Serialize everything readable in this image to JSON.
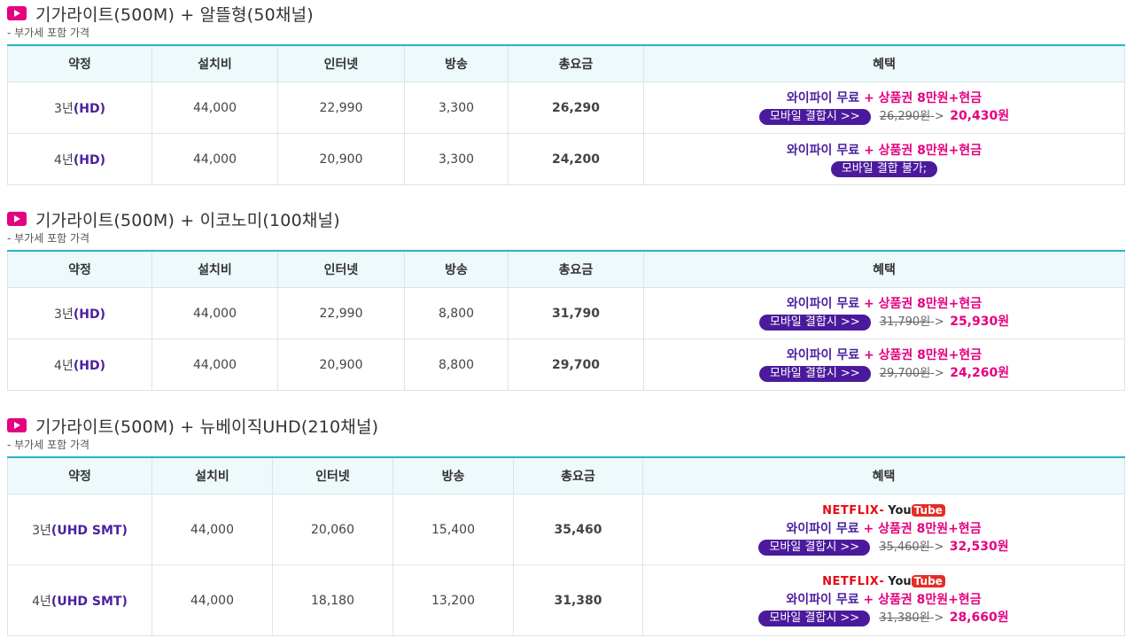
{
  "columns": [
    "약정",
    "설치비",
    "인터넷",
    "방송",
    "총요금",
    "혜택"
  ],
  "note": "- 부가세 포함 가격",
  "benefit": {
    "wifi": "와이파이 무료",
    "plus": " + ",
    "gift": "상품권 8만원+현금",
    "mobile_pill": "모바일 결합시 >>",
    "mobile_unavailable": "모바일 결합 불가;",
    "arrow": "->",
    "netflix": "NETFLIX",
    "dash": "-",
    "yt_you": "You",
    "yt_tube": "Tube"
  },
  "sections": [
    {
      "title": "기가라이트(500M) + 알뜰형(50채널)",
      "rows": [
        {
          "term_num": "3년",
          "term_type": "(HD)",
          "install": "44,000",
          "internet": "22,990",
          "tv": "3,300",
          "total": "26,290",
          "old_price": "26,290원",
          "new_price": "20,430원",
          "mobile": true
        },
        {
          "term_num": "4년",
          "term_type": "(HD)",
          "install": "44,000",
          "internet": "20,900",
          "tv": "3,300",
          "total": "24,200",
          "mobile": false
        }
      ]
    },
    {
      "title": "기가라이트(500M) + 이코노미(100채널)",
      "rows": [
        {
          "term_num": "3년",
          "term_type": "(HD)",
          "install": "44,000",
          "internet": "22,990",
          "tv": "8,800",
          "total": "31,790",
          "old_price": "31,790원",
          "new_price": "25,930원",
          "mobile": true
        },
        {
          "term_num": "4년",
          "term_type": "(HD)",
          "install": "44,000",
          "internet": "20,900",
          "tv": "8,800",
          "total": "29,700",
          "old_price": "29,700원",
          "new_price": "24,260원",
          "mobile": true
        }
      ]
    },
    {
      "title": "기가라이트(500M) + 뉴베이직UHD(210채널)",
      "rows": [
        {
          "term_num": "3년",
          "term_type": "(UHD SMT)",
          "install": "44,000",
          "internet": "20,060",
          "tv": "15,400",
          "total": "35,460",
          "old_price": "35,460원",
          "new_price": "32,530원",
          "mobile": true,
          "logos": true
        },
        {
          "term_num": "4년",
          "term_type": "(UHD SMT)",
          "install": "44,000",
          "internet": "18,180",
          "tv": "13,200",
          "total": "31,380",
          "old_price": "31,380원",
          "new_price": "28,660원",
          "mobile": true,
          "logos": true
        }
      ]
    }
  ],
  "colors": {
    "accent": "#4b1f9f",
    "pink": "#e4007f",
    "header_line": "#27b3c8",
    "header_bg": "#eef9fb"
  }
}
